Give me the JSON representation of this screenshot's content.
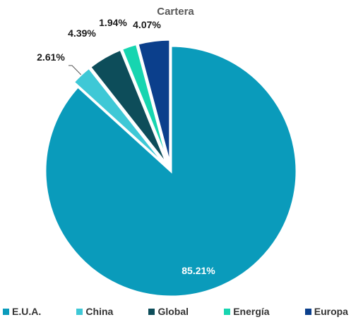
{
  "chart_data": {
    "type": "pie",
    "title": "Cartera",
    "categories": [
      "E.U.A.",
      "China",
      "Global",
      "Energía",
      "Europa"
    ],
    "values": [
      85.21,
      2.61,
      4.39,
      1.94,
      4.07
    ],
    "labels": [
      "85.21%",
      "2.61%",
      "4.39%",
      "1.94%",
      "4.07%"
    ],
    "colors": [
      "#0a9bbb",
      "#3ec8d6",
      "#0d4d5a",
      "#17d5b0",
      "#0b3f8c"
    ],
    "exploded_slices": [
      "China",
      "Global",
      "Energía",
      "Europa"
    ],
    "legend_position": "bottom",
    "start_angle_deg": 0,
    "direction": "clockwise"
  }
}
